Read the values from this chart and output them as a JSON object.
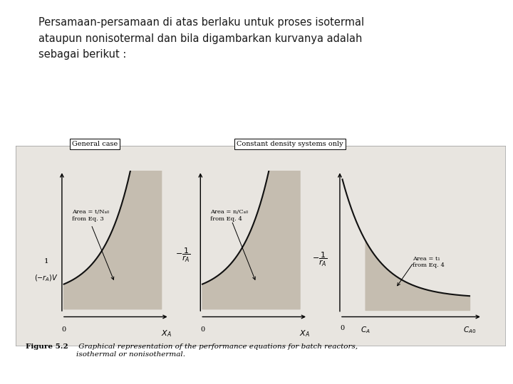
{
  "title_text": "Persamaan-persamaan di atas berlaku untuk proses isotermal\nataupun nonisotermal dan bila digambarkan kurvanya adalah\nsebagai berikut :",
  "page_background": "#ffffff",
  "panel_background": "#e8e5e0",
  "plot_background": "#ddd8ce",
  "figure_caption_bold": "Figure 5.2",
  "figure_caption_rest": " Graphical representation of the performance equations for batch reactors,\nisothermal or nonisothermal.",
  "box1_label": "General case",
  "box2_label": "Constant density systems only",
  "plot1_area_label": "Area = t/Nₐ₀\nfrom Eq. 3",
  "plot2_area_label": "Area = n/Cₐ₀\nfrom Eq. 4",
  "plot3_area_label": "Area = t₁\nfrom Eq. 4",
  "curve_color": "#111111",
  "fill_color": "#c5bdb0",
  "line_width": 1.5
}
